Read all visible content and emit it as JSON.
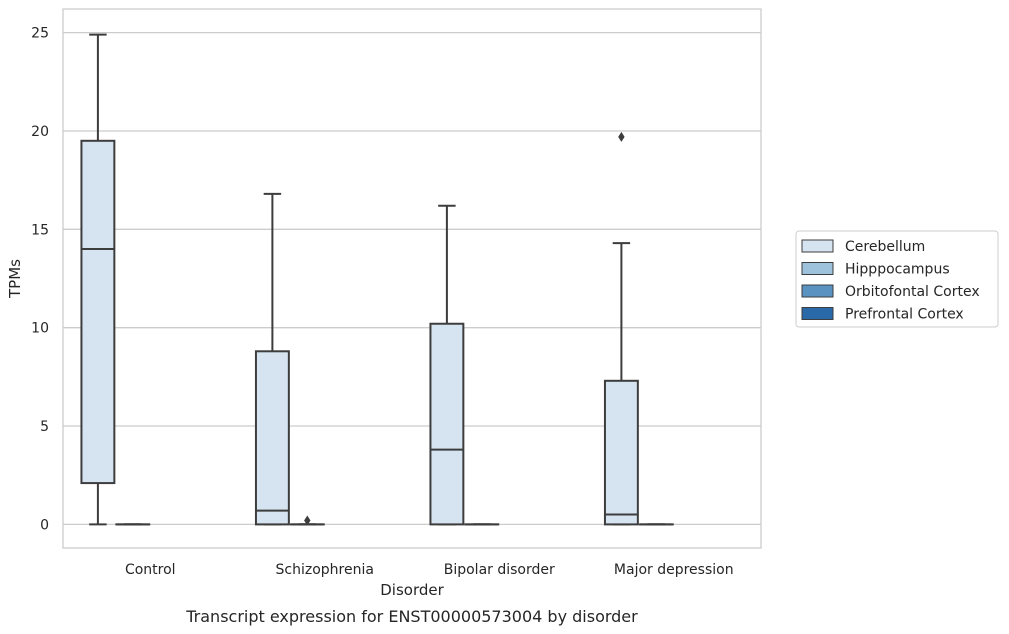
{
  "chart_data": {
    "type": "box",
    "title": "",
    "caption": "Transcript expression for ENST00000573004 by disorder",
    "xlabel": "Disorder",
    "ylabel": "TPMs",
    "ylim": [
      -1.2,
      26.2
    ],
    "yticks": [
      0,
      5,
      10,
      15,
      20,
      25
    ],
    "ytick_labels": [
      "0",
      "5",
      "10",
      "15",
      "20",
      "25"
    ],
    "grid": "horizontal",
    "legend_position": "right",
    "categories": [
      "Control",
      "Schizophrenia",
      "Bipolar disorder",
      "Major depression"
    ],
    "series": [
      {
        "name": "Cerebellum",
        "color": "#d6e3f0",
        "boxes": [
          {
            "whisker_low": 0,
            "q1": 2.1,
            "median": 14.0,
            "q3": 19.5,
            "whisker_high": 24.9,
            "outliers": []
          },
          {
            "whisker_low": 0,
            "q1": 0,
            "median": 0.7,
            "q3": 8.8,
            "whisker_high": 16.8,
            "outliers": []
          },
          {
            "whisker_low": 0,
            "q1": 0,
            "median": 3.8,
            "q3": 10.2,
            "whisker_high": 16.2,
            "outliers": []
          },
          {
            "whisker_low": 0,
            "q1": 0,
            "median": 0.5,
            "q3": 7.3,
            "whisker_high": 14.3,
            "outliers": [
              19.7
            ]
          }
        ]
      },
      {
        "name": "Hipppocampus",
        "color": "#9ec2db",
        "boxes": [
          {
            "whisker_low": 0,
            "q1": 0,
            "median": 0,
            "q3": 0,
            "whisker_high": 0,
            "outliers": []
          },
          {
            "whisker_low": 0,
            "q1": 0,
            "median": 0,
            "q3": 0,
            "whisker_high": 0,
            "outliers": [
              0.2
            ]
          },
          {
            "whisker_low": 0,
            "q1": 0,
            "median": 0,
            "q3": 0,
            "whisker_high": 0,
            "outliers": []
          },
          {
            "whisker_low": 0,
            "q1": 0,
            "median": 0,
            "q3": 0,
            "whisker_high": 0,
            "outliers": []
          }
        ]
      },
      {
        "name": "Orbitofontal Cortex",
        "color": "#5a93c2",
        "boxes": []
      },
      {
        "name": "Prefrontal Cortex",
        "color": "#2a69a8",
        "boxes": []
      }
    ]
  }
}
